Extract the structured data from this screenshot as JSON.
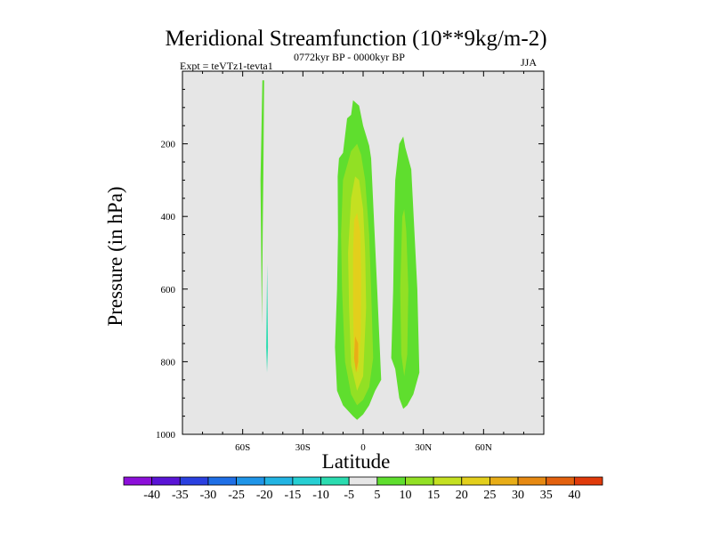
{
  "chart_data": {
    "type": "heatmap",
    "title": "Meridional Streamfunction (10**9kg/m-2)",
    "subtitle": "0772kyr BP - 0000kyr BP",
    "experiment_label": "Expt = teVTz1-tevta1",
    "season": "JJA",
    "xlabel": "Latitude",
    "ylabel": "Pressure (in hPa)",
    "xlim": [
      -90,
      90
    ],
    "ylim": [
      1000,
      0
    ],
    "x_ticks": [
      {
        "value": -60,
        "label": "60S"
      },
      {
        "value": -30,
        "label": "30S"
      },
      {
        "value": 0,
        "label": "0"
      },
      {
        "value": 30,
        "label": "30N"
      },
      {
        "value": 60,
        "label": "60N"
      }
    ],
    "y_ticks": [
      {
        "value": 200,
        "label": "200"
      },
      {
        "value": 400,
        "label": "400"
      },
      {
        "value": 600,
        "label": "600"
      },
      {
        "value": 800,
        "label": "800"
      },
      {
        "value": 1000,
        "label": "1000"
      }
    ],
    "colorbar": {
      "labels": [
        "-40",
        "-35",
        "-30",
        "-25",
        "-20",
        "-15",
        "-10",
        "-5",
        "5",
        "10",
        "15",
        "20",
        "25",
        "30",
        "35",
        "40"
      ],
      "colors": [
        "#8c0fd9",
        "#5a14d6",
        "#2a40e0",
        "#1f6fe6",
        "#1f95e8",
        "#22b4e3",
        "#26cfd3",
        "#2bdcb0",
        "#e6e6e6",
        "#5fde2e",
        "#92e024",
        "#c4e021",
        "#e3cf1c",
        "#e8ad17",
        "#e68912",
        "#e3610e",
        "#e03a0a"
      ]
    },
    "contours": [
      {
        "level": 5,
        "color": "#5fde2e",
        "polygon": [
          [
            -50.2,
            25
          ],
          [
            -49.3,
            25
          ],
          [
            -49.7,
            290
          ],
          [
            -50.0,
            440
          ],
          [
            -50.4,
            700
          ],
          [
            -50.7,
            540
          ],
          [
            -51.1,
            300
          ]
        ]
      },
      {
        "level": -5,
        "color": "#2bdcb0",
        "polygon": [
          [
            -47.8,
            530
          ],
          [
            -47.4,
            760
          ],
          [
            -47.9,
            830
          ],
          [
            -48.3,
            760
          ]
        ]
      },
      {
        "level": 5,
        "color": "#5fde2e",
        "polygon": [
          [
            -12,
            240
          ],
          [
            -10,
            225
          ],
          [
            -8,
            130
          ],
          [
            -6,
            120
          ],
          [
            -5,
            80
          ],
          [
            -2,
            95
          ],
          [
            0,
            150
          ],
          [
            3,
            205
          ],
          [
            4,
            240
          ],
          [
            7,
            600
          ],
          [
            9,
            850
          ],
          [
            6,
            880
          ],
          [
            3,
            920
          ],
          [
            0,
            945
          ],
          [
            -3,
            960
          ],
          [
            -5,
            950
          ],
          [
            -10,
            920
          ],
          [
            -13,
            880
          ],
          [
            -14,
            760
          ],
          [
            -13,
            600
          ],
          [
            -12.5,
            450
          ],
          [
            -12.7,
            290
          ]
        ]
      },
      {
        "level": 10,
        "color": "#92e024",
        "polygon": [
          [
            -10,
            300
          ],
          [
            -6,
            220
          ],
          [
            -3,
            200
          ],
          [
            -1,
            230
          ],
          [
            1,
            300
          ],
          [
            3,
            450
          ],
          [
            4,
            600
          ],
          [
            5,
            790
          ],
          [
            3,
            870
          ],
          [
            0,
            905
          ],
          [
            -3,
            920
          ],
          [
            -6,
            890
          ],
          [
            -9,
            800
          ],
          [
            -10.5,
            600
          ],
          [
            -11,
            450
          ]
        ]
      },
      {
        "level": 15,
        "color": "#c4e021",
        "polygon": [
          [
            -6,
            350
          ],
          [
            -4,
            290
          ],
          [
            -2,
            300
          ],
          [
            0,
            380
          ],
          [
            1,
            500
          ],
          [
            1.5,
            650
          ],
          [
            0,
            840
          ],
          [
            -3,
            880
          ],
          [
            -6,
            810
          ],
          [
            -7,
            650
          ],
          [
            -7.5,
            500
          ]
        ]
      },
      {
        "level": 20,
        "color": "#e3cf1c",
        "polygon": [
          [
            -4.5,
            410
          ],
          [
            -3,
            390
          ],
          [
            -1.5,
            440
          ],
          [
            -1,
            560
          ],
          [
            -1.2,
            720
          ],
          [
            -2.5,
            830
          ],
          [
            -4.5,
            800
          ],
          [
            -5,
            650
          ],
          [
            -5,
            500
          ]
        ]
      },
      {
        "level": 25,
        "color": "#e8ad17",
        "polygon": [
          [
            -4,
            730
          ],
          [
            -2.5,
            750
          ],
          [
            -2.5,
            800
          ],
          [
            -3.5,
            830
          ],
          [
            -4.5,
            790
          ]
        ]
      },
      {
        "level": 5,
        "color": "#5fde2e",
        "polygon": [
          [
            16,
            300
          ],
          [
            18,
            200
          ],
          [
            20,
            180
          ],
          [
            21,
            210
          ],
          [
            24,
            270
          ],
          [
            27,
            600
          ],
          [
            28,
            830
          ],
          [
            25,
            890
          ],
          [
            22,
            920
          ],
          [
            20,
            930
          ],
          [
            18,
            900
          ],
          [
            16,
            820
          ],
          [
            14,
            790
          ],
          [
            15,
            600
          ],
          [
            15.5,
            400
          ]
        ]
      },
      {
        "level": 10,
        "color": "#92e024",
        "polygon": [
          [
            19.5,
            400
          ],
          [
            20.5,
            380
          ],
          [
            21.5,
            440
          ],
          [
            22.5,
            600
          ],
          [
            22,
            780
          ],
          [
            20.5,
            840
          ],
          [
            19,
            780
          ],
          [
            18.5,
            600
          ]
        ]
      }
    ]
  }
}
